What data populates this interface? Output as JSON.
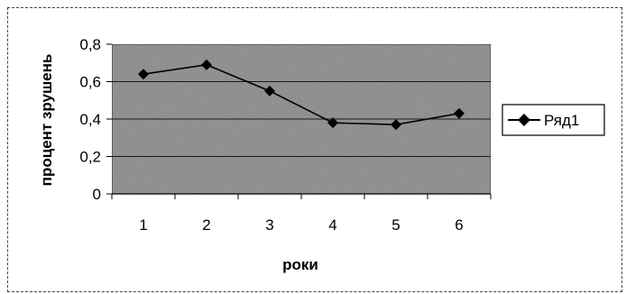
{
  "chart_data": {
    "type": "line",
    "categories": [
      "1",
      "2",
      "3",
      "4",
      "5",
      "6"
    ],
    "series": [
      {
        "name": "Ряд1",
        "values": [
          0.64,
          0.69,
          0.55,
          0.38,
          0.37,
          0.43
        ],
        "color": "#000000",
        "marker": "diamond"
      }
    ],
    "xlabel": "роки",
    "ylabel": "процент зрушень",
    "ylim": [
      0,
      0.8
    ],
    "yticks": [
      "0",
      "0,2",
      "0,4",
      "0,6",
      "0,8"
    ],
    "grid": true,
    "legend_position": "right",
    "plot_background": "#9a9a9a"
  }
}
